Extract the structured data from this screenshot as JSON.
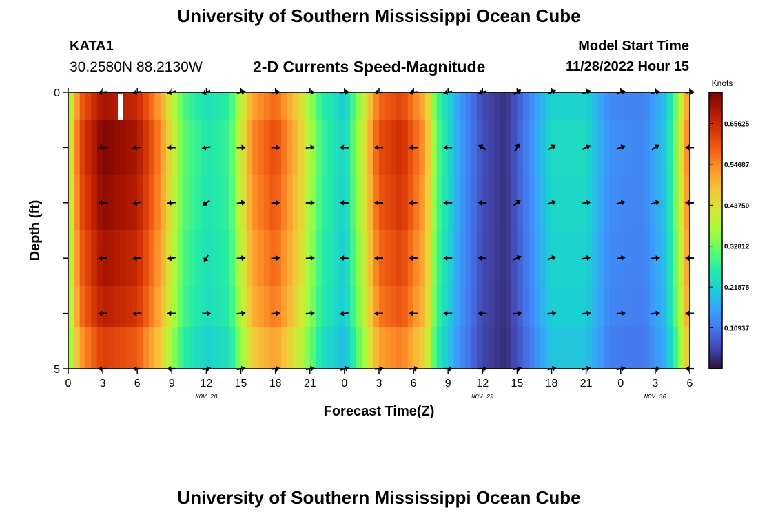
{
  "header": {
    "title": "University of Southern Mississippi Ocean Cube",
    "station_id": "KATA1",
    "station_coords": "30.2580N  88.2130W",
    "plot_title": "2-D Currents Speed-Magnitude",
    "model_start_label": "Model Start Time",
    "model_start_time": "11/28/2022 Hour 15"
  },
  "footer": {
    "title": "University of Southern Mississippi Ocean Cube"
  },
  "chart_data": {
    "type": "heatmap",
    "title": "2-D Currents Speed-Magnitude",
    "xlabel": "Forecast Time(Z)",
    "ylabel": "Depth (ft)",
    "x_ticks": [
      "0",
      "3",
      "6",
      "9",
      "12",
      "15",
      "18",
      "21",
      "0",
      "3",
      "6",
      "9",
      "12",
      "15",
      "18",
      "21",
      "0",
      "3",
      "6"
    ],
    "x_tick_hours": [
      0,
      3,
      6,
      9,
      12,
      15,
      18,
      21,
      24,
      27,
      30,
      33,
      36,
      39,
      42,
      45,
      48,
      51,
      54
    ],
    "date_labels": [
      {
        "text": "NOV 28",
        "hour": 12
      },
      {
        "text": "NOV 29",
        "hour": 36
      },
      {
        "text": "NOV 30",
        "hour": 51
      }
    ],
    "xlim": [
      0,
      54
    ],
    "ylim": [
      5,
      0
    ],
    "y_tick_labels": [
      {
        "value": 0,
        "text": "0"
      },
      {
        "value": 5,
        "text": "5"
      }
    ],
    "y_tick_values": [
      0,
      1,
      2,
      3,
      4,
      5
    ],
    "colorbar": {
      "label": "Knots",
      "ticks": [
        "0.65625",
        "0.54687",
        "0.43750",
        "0.32812",
        "0.21875",
        "0.10937"
      ],
      "tick_values": [
        0.65625,
        0.546875,
        0.4375,
        0.328125,
        0.21875,
        0.109375
      ],
      "range": [
        0,
        0.74
      ]
    },
    "colormap": [
      "#30123b",
      "#4145ab",
      "#4675ed",
      "#39a2fc",
      "#1bcfd4",
      "#24eca6",
      "#61fc6c",
      "#a4fc3b",
      "#d1e834",
      "#f3c63a",
      "#fe9b2d",
      "#f36315",
      "#d93806",
      "#b11901",
      "#7a0402"
    ],
    "time_anchors": [
      {
        "hour": 0,
        "speed": 0.36
      },
      {
        "hour": 1,
        "speed": 0.58
      },
      {
        "hour": 3,
        "speed": 0.7
      },
      {
        "hour": 6,
        "speed": 0.66
      },
      {
        "hour": 8,
        "speed": 0.52
      },
      {
        "hour": 10,
        "speed": 0.3
      },
      {
        "hour": 12,
        "speed": 0.24
      },
      {
        "hour": 14,
        "speed": 0.27
      },
      {
        "hour": 16,
        "speed": 0.52
      },
      {
        "hour": 18,
        "speed": 0.58
      },
      {
        "hour": 20,
        "speed": 0.46
      },
      {
        "hour": 22,
        "speed": 0.27
      },
      {
        "hour": 24,
        "speed": 0.21
      },
      {
        "hour": 25,
        "speed": 0.32
      },
      {
        "hour": 27,
        "speed": 0.58
      },
      {
        "hour": 29,
        "speed": 0.62
      },
      {
        "hour": 31,
        "speed": 0.5
      },
      {
        "hour": 32,
        "speed": 0.3
      },
      {
        "hour": 34,
        "speed": 0.15
      },
      {
        "hour": 36,
        "speed": 0.06
      },
      {
        "hour": 38,
        "speed": 0.03
      },
      {
        "hour": 40,
        "speed": 0.12
      },
      {
        "hour": 42,
        "speed": 0.22
      },
      {
        "hour": 45,
        "speed": 0.22
      },
      {
        "hour": 47,
        "speed": 0.13
      },
      {
        "hour": 50,
        "speed": 0.12
      },
      {
        "hour": 52,
        "speed": 0.2
      },
      {
        "hour": 53,
        "speed": 0.36
      },
      {
        "hour": 54,
        "speed": 0.56
      }
    ],
    "depth_rows": [
      {
        "depth": 0,
        "factor": 1.0
      },
      {
        "depth": 1,
        "factor": 1.05
      },
      {
        "depth": 2,
        "factor": 1.03
      },
      {
        "depth": 3,
        "factor": 1.0
      },
      {
        "depth": 4,
        "factor": 0.97
      },
      {
        "depth": 4.5,
        "factor": 0.9
      }
    ],
    "arrow_hours": [
      3,
      6,
      9,
      12,
      15,
      18,
      21,
      24,
      27,
      30,
      33,
      36,
      39,
      42,
      45,
      48,
      51,
      54
    ],
    "arrow_depths": [
      0,
      1,
      2,
      3,
      4,
      5
    ],
    "arrow_angles_deg": [
      [
        185,
        190,
        195,
        200,
        10,
        5,
        0,
        5,
        180,
        185,
        190,
        195,
        30,
        25,
        20,
        15,
        10,
        5
      ],
      [
        180,
        185,
        180,
        190,
        0,
        0,
        5,
        175,
        180,
        180,
        180,
        150,
        60,
        30,
        25,
        20,
        30,
        180
      ],
      [
        180,
        190,
        185,
        215,
        10,
        5,
        0,
        175,
        180,
        185,
        180,
        175,
        40,
        15,
        10,
        15,
        15,
        180
      ],
      [
        180,
        185,
        190,
        240,
        5,
        5,
        5,
        175,
        180,
        185,
        180,
        175,
        25,
        15,
        10,
        10,
        5,
        180
      ],
      [
        180,
        185,
        180,
        0,
        5,
        5,
        5,
        190,
        180,
        180,
        180,
        180,
        5,
        5,
        5,
        5,
        5,
        180
      ],
      [
        180,
        180,
        180,
        10,
        10,
        5,
        10,
        20,
        5,
        5,
        0,
        0,
        10,
        10,
        10,
        10,
        0,
        180
      ]
    ]
  }
}
